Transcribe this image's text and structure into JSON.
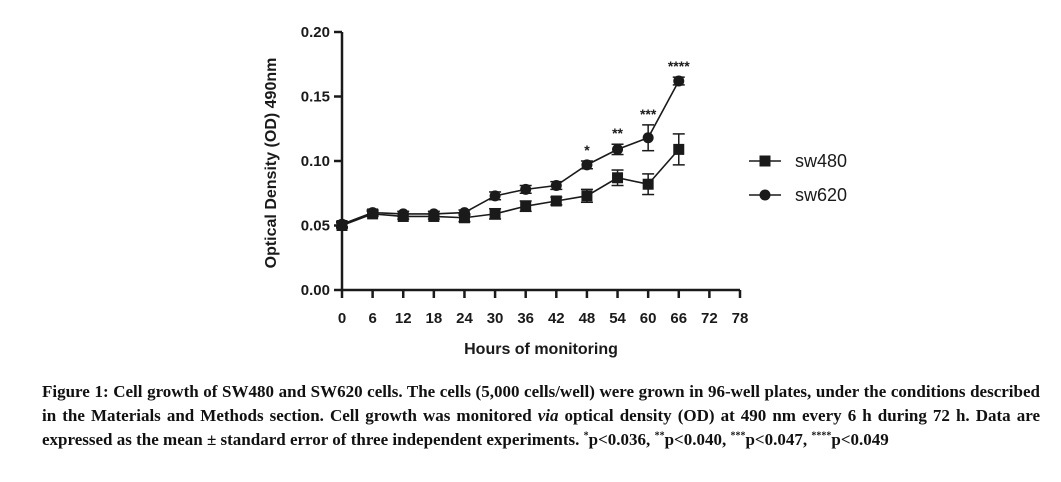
{
  "chart_data": {
    "type": "line",
    "xlabel": "Hours of monitoring",
    "ylabel": "Optical Density (OD) 490nm",
    "xlim": [
      0,
      78
    ],
    "ylim": [
      0,
      0.2
    ],
    "x_ticks": [
      "0",
      "6",
      "12",
      "18",
      "24",
      "30",
      "36",
      "42",
      "48",
      "54",
      "60",
      "66",
      "72",
      "78"
    ],
    "y_ticks": [
      "0.00",
      "0.05",
      "0.10",
      "0.15",
      "0.20"
    ],
    "x": [
      0,
      6,
      12,
      18,
      24,
      30,
      36,
      42,
      48,
      54,
      60,
      66
    ],
    "legend_position": "right",
    "series": [
      {
        "name": "sw480",
        "marker": "square",
        "values": [
          0.05,
          0.059,
          0.057,
          0.057,
          0.056,
          0.059,
          0.065,
          0.069,
          0.073,
          0.087,
          0.082,
          0.109
        ],
        "errors": [
          0.002,
          0.002,
          0.002,
          0.002,
          0.003,
          0.004,
          0.004,
          0.003,
          0.005,
          0.006,
          0.008,
          0.012
        ]
      },
      {
        "name": "sw620",
        "marker": "circle",
        "values": [
          0.051,
          0.06,
          0.059,
          0.059,
          0.06,
          0.073,
          0.078,
          0.081,
          0.097,
          0.109,
          0.118,
          0.162
        ],
        "errors": [
          0.002,
          0.002,
          0.002,
          0.002,
          0.002,
          0.003,
          0.003,
          0.003,
          0.003,
          0.004,
          0.01,
          0.003
        ]
      }
    ],
    "annotations": [
      {
        "x": 48,
        "text": "*"
      },
      {
        "x": 54,
        "text": "**"
      },
      {
        "x": 60,
        "text": "***"
      },
      {
        "x": 66,
        "text": "****"
      }
    ],
    "colors": {
      "line": "#1a1a1a",
      "background": "#ffffff"
    }
  },
  "caption": {
    "label": "Figure 1:",
    "text_1": " Cell growth of SW480 and SW620 cells. The cells (5,000 cells/well) were grown in 96-well plates, under the conditions described in the Materials and Methods section. Cell growth was monitored ",
    "via": "via",
    "text_2": " optical density (OD) at 490 nm every 6 h during 72 h. Data are expressed as the mean ± standard error of three independent experiments. ",
    "sig1_sup": "*",
    "sig1": "p<0.036, ",
    "sig2_sup": "**",
    "sig2": "p<0.040, ",
    "sig3_sup": "***",
    "sig3": "p<0.047, ",
    "sig4_sup": "****",
    "sig4": "p<0.049"
  }
}
